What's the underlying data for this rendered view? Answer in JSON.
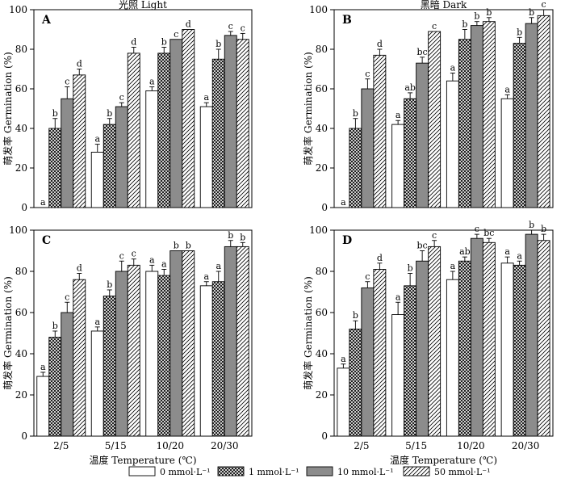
{
  "chart_data": [
    {
      "panel": "A",
      "title": "光照 Light",
      "type": "bar",
      "categories": [
        "2/5",
        "5/15",
        "10/20",
        "20/30"
      ],
      "xlabel": "",
      "ylabel": "萌发率 Germination (%)",
      "ylim": [
        0,
        100
      ],
      "yticks": [
        0,
        20,
        40,
        60,
        80,
        100
      ],
      "series": [
        {
          "name": "0 mmol·L⁻¹",
          "values": [
            0,
            28,
            59,
            51
          ],
          "errors": [
            0,
            4,
            2,
            2
          ],
          "letters": [
            "a",
            "a",
            "a",
            "a"
          ]
        },
        {
          "name": "1 mmol·L⁻¹",
          "values": [
            40,
            42,
            78,
            75
          ],
          "errors": [
            5,
            3,
            3,
            5
          ],
          "letters": [
            "b",
            "b",
            "b",
            "b"
          ]
        },
        {
          "name": "10 mmol·L⁻¹",
          "values": [
            55,
            51,
            85,
            87
          ],
          "errors": [
            6,
            2,
            0,
            2
          ],
          "letters": [
            "c",
            "c",
            "c",
            "c"
          ]
        },
        {
          "name": "50 mmol·L⁻¹",
          "values": [
            67,
            78,
            90,
            85
          ],
          "errors": [
            3,
            3,
            0,
            3
          ],
          "letters": [
            "d",
            "d",
            "d",
            "c"
          ]
        }
      ]
    },
    {
      "panel": "B",
      "title": "黑暗 Dark",
      "type": "bar",
      "categories": [
        "2/5",
        "5/15",
        "10/20",
        "20/30"
      ],
      "xlabel": "",
      "ylabel": "萌发率 Germination (%)",
      "ylim": [
        0,
        100
      ],
      "yticks": [
        0,
        20,
        40,
        60,
        80,
        100
      ],
      "series": [
        {
          "name": "0 mmol·L⁻¹",
          "values": [
            0,
            42,
            64,
            55
          ],
          "errors": [
            0,
            2,
            4,
            2
          ],
          "letters": [
            "a",
            "a",
            "a",
            "a"
          ]
        },
        {
          "name": "1 mmol·L⁻¹",
          "values": [
            40,
            55,
            85,
            83
          ],
          "errors": [
            5,
            3,
            5,
            3
          ],
          "letters": [
            "b",
            "ab",
            "b",
            "b"
          ]
        },
        {
          "name": "10 mmol·L⁻¹",
          "values": [
            60,
            73,
            92,
            93
          ],
          "errors": [
            5,
            3,
            2,
            3
          ],
          "letters": [
            "c",
            "bc",
            "b",
            "b"
          ]
        },
        {
          "name": "50 mmol·L⁻¹",
          "values": [
            77,
            89,
            94,
            97
          ],
          "errors": [
            3,
            0,
            2,
            3
          ],
          "letters": [
            "d",
            "c",
            "b",
            "c"
          ]
        }
      ]
    },
    {
      "panel": "C",
      "title": "",
      "type": "bar",
      "categories": [
        "2/5",
        "5/15",
        "10/20",
        "20/30"
      ],
      "xlabel": "温度 Temperature (℃)",
      "ylabel": "萌发率 Germination (%)",
      "ylim": [
        0,
        100
      ],
      "yticks": [
        0,
        20,
        40,
        60,
        80,
        100
      ],
      "series": [
        {
          "name": "0 mmol·L⁻¹",
          "values": [
            29,
            51,
            80,
            73
          ],
          "errors": [
            2,
            2,
            3,
            2
          ],
          "letters": [
            "a",
            "a",
            "a",
            "a"
          ]
        },
        {
          "name": "1 mmol·L⁻¹",
          "values": [
            48,
            68,
            78,
            75
          ],
          "errors": [
            3,
            3,
            3,
            5
          ],
          "letters": [
            "b",
            "b",
            "a",
            "a"
          ]
        },
        {
          "name": "10 mmol·L⁻¹",
          "values": [
            60,
            80,
            90,
            92
          ],
          "errors": [
            5,
            5,
            0,
            3
          ],
          "letters": [
            "c",
            "c",
            "b",
            "b"
          ]
        },
        {
          "name": "50 mmol·L⁻¹",
          "values": [
            76,
            83,
            90,
            92
          ],
          "errors": [
            3,
            3,
            0,
            2
          ],
          "letters": [
            "d",
            "c",
            "b",
            "b"
          ]
        }
      ]
    },
    {
      "panel": "D",
      "title": "",
      "type": "bar",
      "categories": [
        "2/5",
        "5/15",
        "10/20",
        "20/30"
      ],
      "xlabel": "温度 Temperature (℃)",
      "ylabel": "萌发率 Germination (%)",
      "ylim": [
        0,
        100
      ],
      "yticks": [
        0,
        20,
        40,
        60,
        80,
        100
      ],
      "series": [
        {
          "name": "0 mmol·L⁻¹",
          "values": [
            33,
            59,
            76,
            84
          ],
          "errors": [
            2,
            6,
            4,
            3
          ],
          "letters": [
            "a",
            "a",
            "a",
            "a"
          ]
        },
        {
          "name": "1 mmol·L⁻¹",
          "values": [
            52,
            73,
            85,
            83
          ],
          "errors": [
            4,
            6,
            2,
            2
          ],
          "letters": [
            "b",
            "b",
            "ab",
            "a"
          ]
        },
        {
          "name": "10 mmol·L⁻¹",
          "values": [
            72,
            85,
            96,
            98
          ],
          "errors": [
            3,
            5,
            2,
            2
          ],
          "letters": [
            "c",
            "bc",
            "c",
            "b"
          ]
        },
        {
          "name": "50 mmol·L⁻¹",
          "values": [
            81,
            92,
            94,
            95
          ],
          "errors": [
            3,
            3,
            2,
            3
          ],
          "letters": [
            "d",
            "c",
            "bc",
            "b"
          ]
        }
      ]
    }
  ],
  "legend": {
    "placement": "bottom",
    "items": [
      {
        "label": "0 mmol·L⁻¹",
        "fill": "white"
      },
      {
        "label": "1 mmol·L⁻¹",
        "fill": "crosshatch"
      },
      {
        "label": "10 mmol·L⁻¹",
        "fill": "gray"
      },
      {
        "label": "50 mmol·L⁻¹",
        "fill": "diagonal"
      }
    ]
  },
  "colors": {
    "bar_outline": "#000000",
    "gray_fill": "#8c8c8c",
    "white_fill": "#ffffff"
  }
}
